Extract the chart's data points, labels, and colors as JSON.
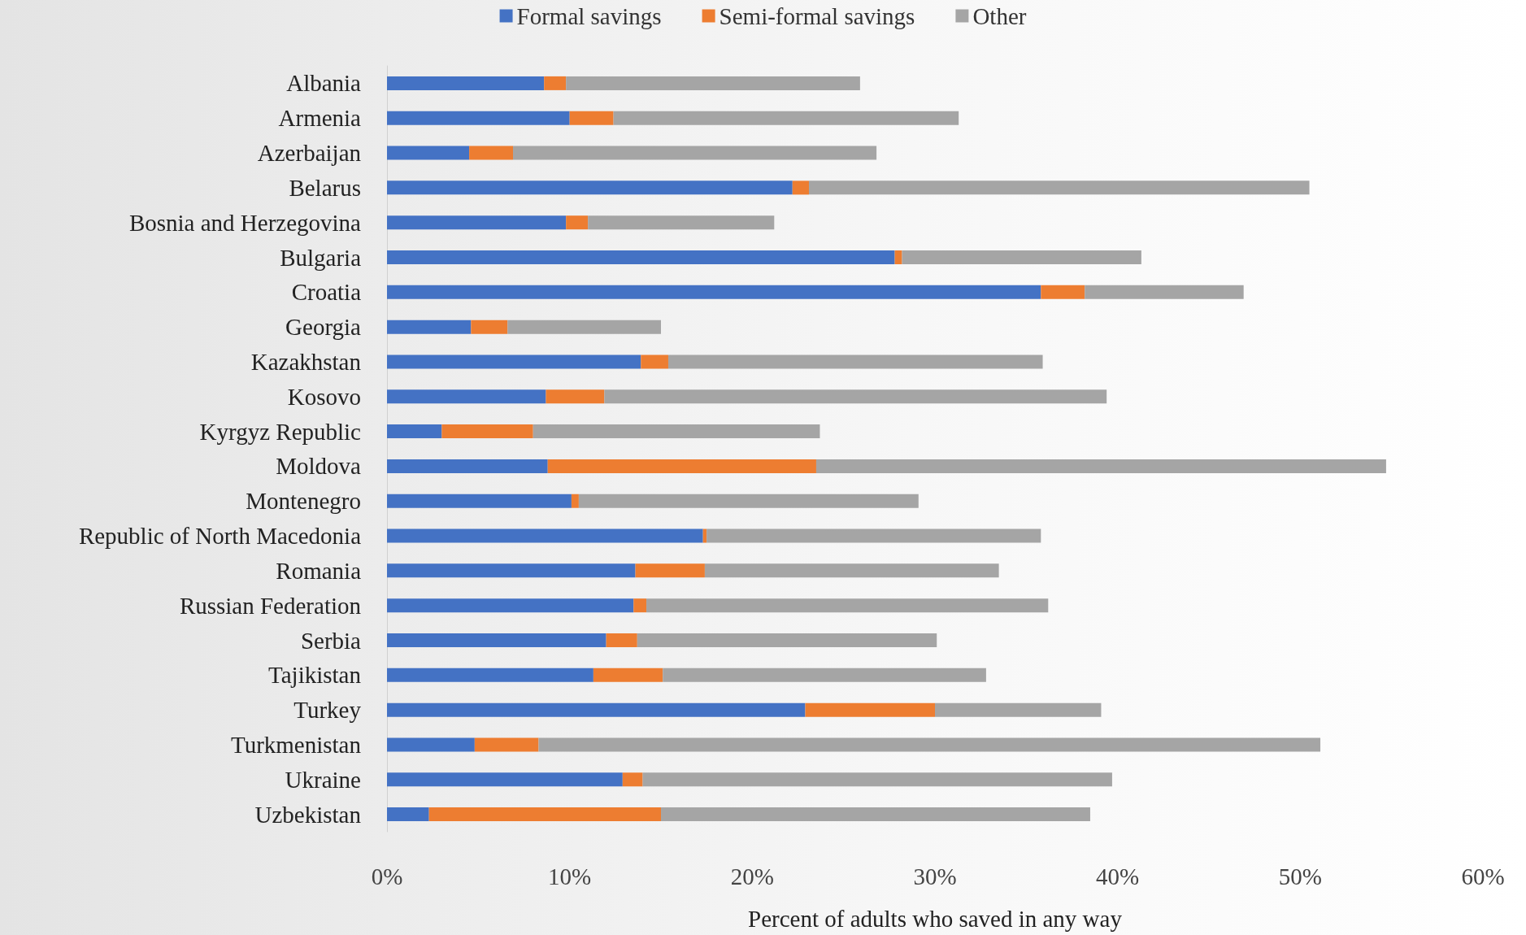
{
  "chart_data": {
    "type": "bar",
    "orientation": "horizontal",
    "stacked": true,
    "legend": "top",
    "grid": false,
    "xlabel": "Percent of adults who saved in any way",
    "categories": [
      "Albania",
      "Armenia",
      "Azerbaijan",
      "Belarus",
      "Bosnia and Herzegovina",
      "Bulgaria",
      "Croatia",
      "Georgia",
      "Kazakhstan",
      "Kosovo",
      "Kyrgyz Republic",
      "Moldova",
      "Montenegro",
      "Republic of North Macedonia",
      "Romania",
      "Russian Federation",
      "Serbia",
      "Tajikistan",
      "Turkey",
      "Turkmenistan",
      "Ukraine",
      "Uzbekistan"
    ],
    "series": [
      {
        "name": "Formal savings",
        "color": "#4472c4",
        "values": [
          8.6,
          10.0,
          4.5,
          22.2,
          9.8,
          27.8,
          35.8,
          4.6,
          13.9,
          8.7,
          3.0,
          8.8,
          10.1,
          17.3,
          13.6,
          13.5,
          12.0,
          11.3,
          22.9,
          4.8,
          12.9,
          2.3
        ]
      },
      {
        "name": "Semi-formal savings",
        "color": "#ed7d31",
        "values": [
          1.2,
          2.4,
          2.4,
          0.9,
          1.2,
          0.4,
          2.4,
          2.0,
          1.5,
          3.2,
          5.0,
          14.7,
          0.4,
          0.2,
          3.8,
          0.7,
          1.7,
          3.8,
          7.1,
          3.5,
          1.1,
          12.7
        ]
      },
      {
        "name": "Other",
        "color": "#a5a5a5",
        "values": [
          16.1,
          18.9,
          19.9,
          27.4,
          10.2,
          13.1,
          8.7,
          8.4,
          20.5,
          27.5,
          15.7,
          31.2,
          18.6,
          18.3,
          16.1,
          22.0,
          16.4,
          17.7,
          9.1,
          42.8,
          25.7,
          23.5
        ]
      }
    ],
    "xlim": [
      0,
      60
    ],
    "xticks": [
      {
        "value": 0,
        "label": "0%"
      },
      {
        "value": 10,
        "label": "10%"
      },
      {
        "value": 20,
        "label": "20%"
      },
      {
        "value": 30,
        "label": "30%"
      },
      {
        "value": 40,
        "label": "40%"
      },
      {
        "value": 50,
        "label": "50%"
      },
      {
        "value": 60,
        "label": "60%"
      }
    ]
  }
}
